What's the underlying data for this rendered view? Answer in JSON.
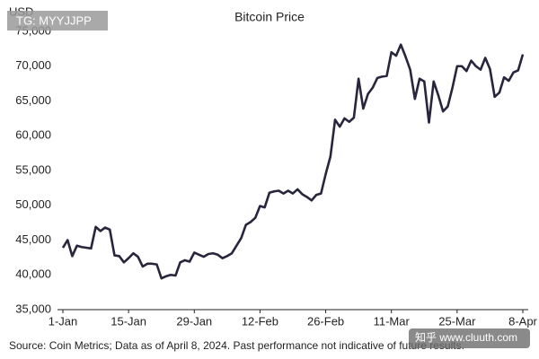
{
  "chart_data": {
    "type": "line",
    "title": "Bitcoin Price",
    "y_label": "USD",
    "source": "Source: Coin Metrics; Data as of April 8, 2024. Past performance not indicative of future results.",
    "watermark": "TG: MYYJJPP",
    "watermark_bottom": "知乎 www.cluuth.com",
    "categories": [
      "1-Jan",
      null,
      null,
      null,
      null,
      null,
      null,
      null,
      null,
      null,
      null,
      null,
      null,
      null,
      "15-Jan",
      null,
      null,
      null,
      null,
      null,
      null,
      null,
      null,
      null,
      null,
      null,
      null,
      null,
      "29-Jan",
      null,
      null,
      null,
      null,
      null,
      null,
      null,
      null,
      null,
      null,
      null,
      null,
      null,
      "12-Feb",
      null,
      null,
      null,
      null,
      null,
      null,
      null,
      null,
      null,
      null,
      null,
      null,
      null,
      "26-Feb",
      null,
      null,
      null,
      null,
      null,
      null,
      null,
      null,
      null,
      null,
      null,
      null,
      null,
      "11-Mar",
      null,
      null,
      null,
      null,
      null,
      null,
      null,
      null,
      null,
      null,
      null,
      null,
      null,
      "25-Mar",
      null,
      null,
      null,
      null,
      null,
      null,
      null,
      null,
      null,
      null,
      null,
      null,
      null,
      "8-Apr"
    ],
    "series": [
      {
        "name": "Bitcoin Price",
        "color": "#27263d",
        "values": [
          43900,
          45000,
          42700,
          44200,
          44000,
          43900,
          43800,
          46900,
          46300,
          46800,
          46500,
          42800,
          42700,
          41800,
          42400,
          43100,
          42600,
          41200,
          41600,
          41600,
          41500,
          39500,
          39800,
          40000,
          39900,
          41800,
          42100,
          41900,
          43200,
          42900,
          42600,
          43000,
          43100,
          42900,
          42400,
          42700,
          43100,
          44200,
          45300,
          47200,
          47600,
          48200,
          49900,
          49700,
          51800,
          52000,
          52100,
          51700,
          52100,
          51700,
          52300,
          51600,
          51200,
          50700,
          51500,
          51700,
          54500,
          57000,
          62300,
          61300,
          62500,
          62000,
          62600,
          68200,
          63900,
          66000,
          66900,
          68300,
          68500,
          68600,
          72000,
          71500,
          73100,
          71400,
          69500,
          65300,
          68200,
          67800,
          61900,
          67800,
          65800,
          63500,
          64200,
          66900,
          70000,
          70000,
          69300,
          70800,
          70000,
          69500,
          71200,
          69600,
          65600,
          66200,
          68400,
          67900,
          69100,
          69400,
          71700
        ]
      }
    ],
    "ylim": [
      35000,
      75000
    ],
    "yticks": [
      {
        "value": 35000,
        "label": "35,000"
      },
      {
        "value": 40000,
        "label": "40,000"
      },
      {
        "value": 45000,
        "label": "45,000"
      },
      {
        "value": 50000,
        "label": "50,000"
      },
      {
        "value": 55000,
        "label": "55,000"
      },
      {
        "value": 60000,
        "label": "60,000"
      },
      {
        "value": 65000,
        "label": "65,000"
      },
      {
        "value": 70000,
        "label": "70,000"
      },
      {
        "value": 75000,
        "label": "75,000"
      }
    ],
    "grid": false
  }
}
